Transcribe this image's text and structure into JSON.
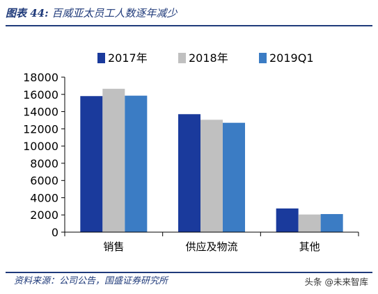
{
  "header": {
    "figure_label": "图表 44:",
    "title": "百威亚太员工人数逐年减少"
  },
  "footer": {
    "source": "资料来源：公司公告，国盛证券研究所",
    "watermark": "头条 @未来智库"
  },
  "chart_data": {
    "type": "bar",
    "categories": [
      "销售",
      "供应及物流",
      "其他"
    ],
    "series": [
      {
        "name": "2017年",
        "color": "#1a3a9c",
        "values": [
          15800,
          13700,
          2750
        ]
      },
      {
        "name": "2018年",
        "color": "#c0c0c0",
        "values": [
          16650,
          13050,
          2050
        ]
      },
      {
        "name": "2019Q1",
        "color": "#3b7cc4",
        "values": [
          15850,
          12700,
          2100
        ]
      }
    ],
    "yticks": [
      "0",
      "2000",
      "4000",
      "6000",
      "8000",
      "10000",
      "12000",
      "14000",
      "16000",
      "18000"
    ],
    "ylim": [
      0,
      18000
    ],
    "legend_position": "top-center",
    "grid": false
  }
}
